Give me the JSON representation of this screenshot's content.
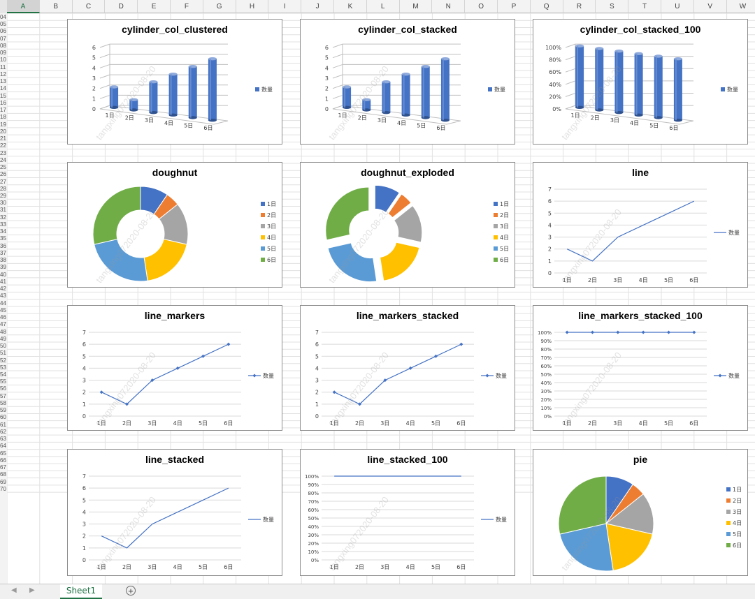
{
  "spreadsheet": {
    "columns": [
      "A",
      "B",
      "C",
      "D",
      "E",
      "F",
      "G",
      "H",
      "I",
      "J",
      "K",
      "L",
      "M",
      "N",
      "O",
      "P",
      "Q",
      "R",
      "S",
      "T",
      "U",
      "V",
      "W"
    ],
    "selected_column": "A",
    "first_row": 4,
    "last_row": 70,
    "sheet_tab": "Sheet1",
    "add_sheet_icon": "plus-circle-icon",
    "nav_prev_icon": "chevron-left-icon",
    "nav_next_icon": "chevron-right-icon"
  },
  "watermark": "tangxing072020-08-20",
  "colors": {
    "series_blue": "#4472C4",
    "slices": [
      "#4472C4",
      "#ED7D31",
      "#A5A5A5",
      "#FFC000",
      "#5B9BD5",
      "#70AD47"
    ],
    "grid": "#d9d9d9",
    "axis_text": "#404040"
  },
  "chart_data": [
    {
      "id": "c1",
      "type": "bar",
      "subtype": "cylinder_clustered",
      "title": "cylinder_col_clustered",
      "categories": [
        "1日",
        "2日",
        "3日",
        "4日",
        "5日",
        "6日"
      ],
      "series": [
        {
          "name": "数量",
          "values": [
            2,
            1,
            3,
            4,
            5,
            6
          ]
        }
      ],
      "ylim": [
        0,
        6
      ],
      "yticks": [
        0,
        1,
        2,
        3,
        4,
        5,
        6
      ],
      "legend": "right",
      "grid": true
    },
    {
      "id": "c2",
      "type": "bar",
      "subtype": "cylinder_stacked",
      "title": "cylinder_col_stacked",
      "categories": [
        "1日",
        "2日",
        "3日",
        "4日",
        "5日",
        "6日"
      ],
      "series": [
        {
          "name": "数量",
          "values": [
            2,
            1,
            3,
            4,
            5,
            6
          ]
        }
      ],
      "ylim": [
        0,
        6
      ],
      "yticks": [
        0,
        1,
        2,
        3,
        4,
        5,
        6
      ],
      "legend": "right",
      "grid": true
    },
    {
      "id": "c3",
      "type": "bar",
      "subtype": "cylinder_stacked_100",
      "title": "cylinder_col_stacked_100",
      "categories": [
        "1日",
        "2日",
        "3日",
        "4日",
        "5日",
        "6日"
      ],
      "series": [
        {
          "name": "数量",
          "values": [
            100,
            100,
            100,
            100,
            100,
            100
          ]
        }
      ],
      "ylim": [
        0,
        100
      ],
      "yticks": [
        "0%",
        "20%",
        "40%",
        "60%",
        "80%",
        "100%"
      ],
      "legend": "right",
      "grid": true
    },
    {
      "id": "c4",
      "type": "pie",
      "subtype": "doughnut",
      "title": "doughnut",
      "categories": [
        "1日",
        "2日",
        "3日",
        "4日",
        "5日",
        "6日"
      ],
      "values": [
        2,
        1,
        3,
        4,
        5,
        6
      ],
      "legend": "right"
    },
    {
      "id": "c5",
      "type": "pie",
      "subtype": "doughnut_exploded",
      "title": "doughnut_exploded",
      "categories": [
        "1日",
        "2日",
        "3日",
        "4日",
        "5日",
        "6日"
      ],
      "values": [
        2,
        1,
        3,
        4,
        5,
        6
      ],
      "legend": "right"
    },
    {
      "id": "c6",
      "type": "line",
      "subtype": "line",
      "title": "line",
      "categories": [
        "1日",
        "2日",
        "3日",
        "4日",
        "5日",
        "6日"
      ],
      "series": [
        {
          "name": "数量",
          "values": [
            2,
            1,
            3,
            4,
            5,
            6
          ]
        }
      ],
      "ylim": [
        0,
        7
      ],
      "yticks": [
        0,
        1,
        2,
        3,
        4,
        5,
        6,
        7
      ],
      "markers": false,
      "legend": "right",
      "grid": true
    },
    {
      "id": "c7",
      "type": "line",
      "subtype": "line_markers",
      "title": "line_markers",
      "categories": [
        "1日",
        "2日",
        "3日",
        "4日",
        "5日",
        "6日"
      ],
      "series": [
        {
          "name": "数量",
          "values": [
            2,
            1,
            3,
            4,
            5,
            6
          ]
        }
      ],
      "ylim": [
        0,
        7
      ],
      "yticks": [
        0,
        1,
        2,
        3,
        4,
        5,
        6,
        7
      ],
      "markers": true,
      "legend": "right",
      "grid": true
    },
    {
      "id": "c8",
      "type": "line",
      "subtype": "line_markers_stacked",
      "title": "line_markers_stacked",
      "categories": [
        "1日",
        "2日",
        "3日",
        "4日",
        "5日",
        "6日"
      ],
      "series": [
        {
          "name": "数量",
          "values": [
            2,
            1,
            3,
            4,
            5,
            6
          ]
        }
      ],
      "ylim": [
        0,
        7
      ],
      "yticks": [
        0,
        1,
        2,
        3,
        4,
        5,
        6,
        7
      ],
      "markers": true,
      "legend": "right",
      "grid": true
    },
    {
      "id": "c9",
      "type": "line",
      "subtype": "line_markers_stacked_100",
      "title": "line_markers_stacked_100",
      "categories": [
        "1日",
        "2日",
        "3日",
        "4日",
        "5日",
        "6日"
      ],
      "series": [
        {
          "name": "数量",
          "values": [
            100,
            100,
            100,
            100,
            100,
            100
          ]
        }
      ],
      "ylim": [
        0,
        100
      ],
      "yticks": [
        "0%",
        "10%",
        "20%",
        "30%",
        "40%",
        "50%",
        "60%",
        "70%",
        "80%",
        "90%",
        "100%"
      ],
      "markers": true,
      "legend": "right",
      "grid": true
    },
    {
      "id": "c10",
      "type": "line",
      "subtype": "line_stacked",
      "title": "line_stacked",
      "categories": [
        "1日",
        "2日",
        "3日",
        "4日",
        "5日",
        "6日"
      ],
      "series": [
        {
          "name": "数量",
          "values": [
            2,
            1,
            3,
            4,
            5,
            6
          ]
        }
      ],
      "ylim": [
        0,
        7
      ],
      "yticks": [
        0,
        1,
        2,
        3,
        4,
        5,
        6,
        7
      ],
      "markers": false,
      "legend": "right",
      "grid": true
    },
    {
      "id": "c11",
      "type": "line",
      "subtype": "line_stacked_100",
      "title": "line_stacked_100",
      "categories": [
        "1日",
        "2日",
        "3日",
        "4日",
        "5日",
        "6日"
      ],
      "series": [
        {
          "name": "数量",
          "values": [
            100,
            100,
            100,
            100,
            100,
            100
          ]
        }
      ],
      "ylim": [
        0,
        100
      ],
      "yticks": [
        "0%",
        "10%",
        "20%",
        "30%",
        "40%",
        "50%",
        "60%",
        "70%",
        "80%",
        "90%",
        "100%"
      ],
      "markers": false,
      "legend": "right",
      "grid": true
    },
    {
      "id": "c12",
      "type": "pie",
      "subtype": "pie",
      "title": "pie",
      "categories": [
        "1日",
        "2日",
        "3日",
        "4日",
        "5日",
        "6日"
      ],
      "values": [
        2,
        1,
        3,
        4,
        5,
        6
      ],
      "legend": "right"
    }
  ]
}
